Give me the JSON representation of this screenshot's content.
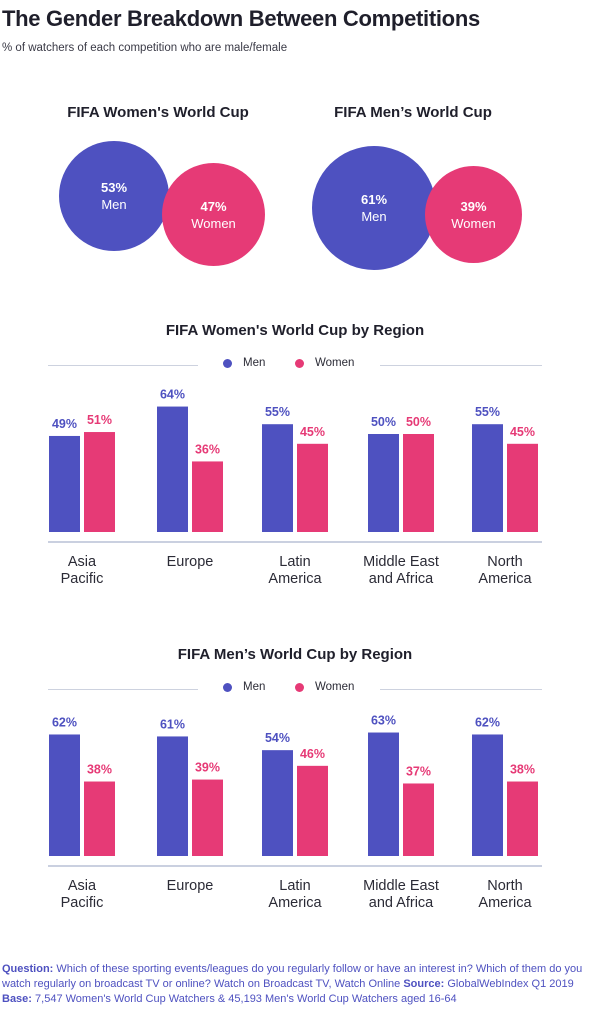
{
  "header": {
    "title": "The Gender Breakdown Between Competitions",
    "subtitle": "% of watchers of each competition who are male/female"
  },
  "colors": {
    "men": "#4e51c0",
    "women": "#e63a76",
    "axis": "#b8c0d6"
  },
  "overview": {
    "womens": {
      "title": "FIFA Women's World Cup",
      "men_pct": "53%",
      "men_label": "Men",
      "women_pct": "47%",
      "women_label": "Women"
    },
    "mens": {
      "title": "FIFA Men’s World Cup",
      "men_pct": "61%",
      "men_label": "Men",
      "women_pct": "39%",
      "women_label": "Women"
    }
  },
  "legend": {
    "men": "Men",
    "women": "Women"
  },
  "chart_data": [
    {
      "type": "bar",
      "title": "FIFA Women's World Cup by Region",
      "categories": [
        "Asia\nPacific",
        "Europe",
        "Latin\nAmerica",
        "Middle East\nand Africa",
        "North\nAmerica"
      ],
      "series": [
        {
          "name": "Men",
          "values": [
            49,
            64,
            55,
            50,
            55
          ]
        },
        {
          "name": "Women",
          "values": [
            51,
            36,
            45,
            50,
            45
          ]
        }
      ],
      "ylim": [
        0,
        100
      ]
    },
    {
      "type": "bar",
      "title": "FIFA Men’s World Cup by Region",
      "categories": [
        "Asia\nPacific",
        "Europe",
        "Latin\nAmerica",
        "Middle East\nand Africa",
        "North\nAmerica"
      ],
      "series": [
        {
          "name": "Men",
          "values": [
            62,
            61,
            54,
            63,
            62
          ]
        },
        {
          "name": "Women",
          "values": [
            38,
            39,
            46,
            37,
            38
          ]
        }
      ],
      "ylim": [
        0,
        100
      ]
    }
  ],
  "footer": {
    "question_label": "Question:",
    "question_text": "Which of these sporting events/leagues do you regularly follow or have an interest in? Which of them do you watch regularly on broadcast TV or online? Watch on Broadcast TV, Watch Online",
    "source_label": "Source:",
    "source_text": "GlobalWebIndex Q1 2019",
    "base_label": "Base:",
    "base_text": "7,547 Women's World Cup Watchers & 45,193 Men's World Cup Watchers aged 16-64"
  }
}
